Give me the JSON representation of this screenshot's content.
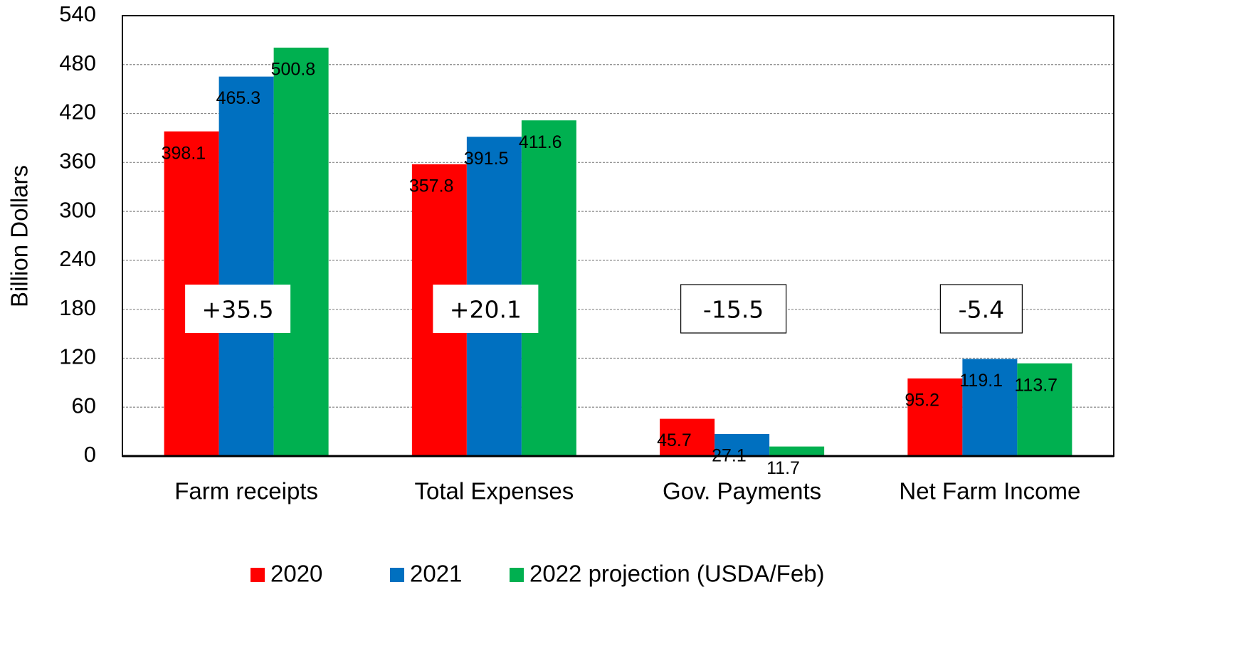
{
  "chart_data": {
    "type": "bar",
    "y_label": "Billion Dollars",
    "categories": [
      "Farm receipts",
      "Total Expenses",
      "Gov. Payments",
      "Net Farm Income"
    ],
    "series": [
      {
        "name": "2020",
        "color": "#ff0000",
        "values": [
          398.1,
          357.8,
          45.7,
          95.2
        ]
      },
      {
        "name": "2021",
        "color": "#0070c0",
        "values": [
          465.3,
          391.5,
          27.1,
          119.1
        ]
      },
      {
        "name": "2022 projection (USDA/Feb)",
        "color": "#00b050",
        "values": [
          500.8,
          411.6,
          11.7,
          113.7
        ]
      }
    ],
    "annotations": [
      "+35.5",
      "+20.1",
      "-15.5",
      "-5.4"
    ],
    "ylim": [
      0,
      540
    ],
    "yticks": [
      0,
      60,
      120,
      180,
      240,
      300,
      360,
      420,
      480,
      540
    ],
    "grid": true,
    "legend": "bottom"
  }
}
